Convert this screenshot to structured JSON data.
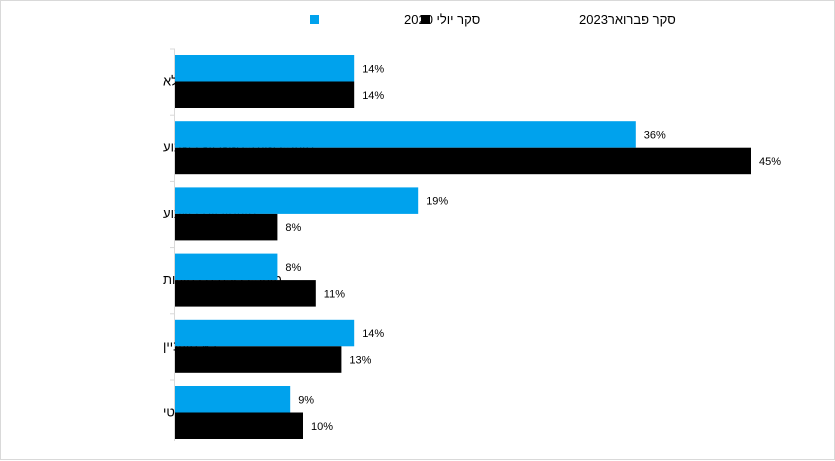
{
  "chart_data": {
    "type": "bar",
    "orientation": "horizontal",
    "categories": [
      "מעוניין באופן מלא",
      "מעוניין פעמיים-שלוש בשבוע",
      "מעוניין יום בשבוע",
      "מעוניין לעיתים  רחוקות",
      "לא מעוניין",
      "לא יודע / לא רלוונטי"
    ],
    "series": [
      {
        "name": "סקר יולי 2020",
        "values": [
          14,
          36,
          19,
          8,
          14,
          9
        ],
        "labels": [
          "14%",
          "36%",
          "19%",
          "8%",
          "14%",
          "9%"
        ],
        "color": "#00a2ed"
      },
      {
        "name": "סקר פברואר2023",
        "values": [
          14,
          45,
          8,
          11,
          13,
          10
        ],
        "labels": [
          "14%",
          "45%",
          "8%",
          "11%",
          "13%",
          "10%"
        ],
        "color": "#000000"
      }
    ],
    "xlim": [
      0,
      50
    ],
    "legend_position": "top",
    "grid": false
  }
}
